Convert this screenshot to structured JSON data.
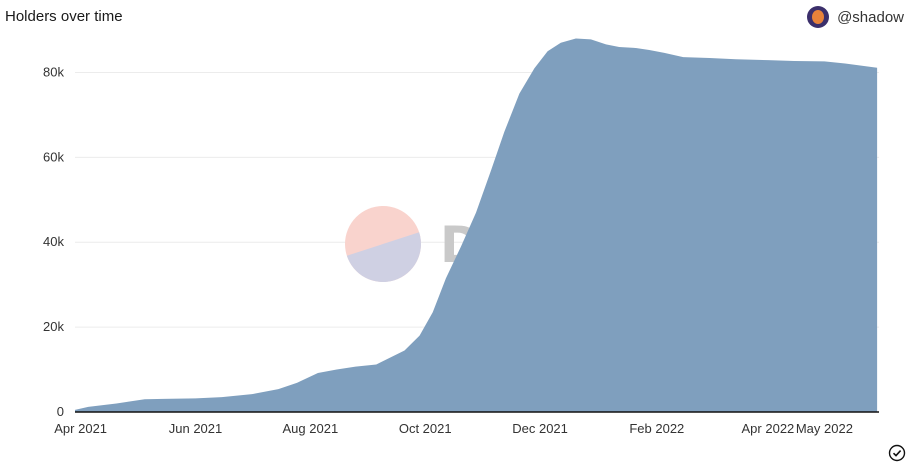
{
  "header": {
    "title": "Holders over time",
    "author": "@shadow"
  },
  "watermark": {
    "text": "Dune"
  },
  "colors": {
    "area": "#7f9fbe",
    "axis": "#111111",
    "grid": "#ececec",
    "wm_top": "#f9d3cd",
    "wm_bottom": "#cfd0e3"
  },
  "icons": {
    "avatar": "avatar-icon",
    "check": "check-circle-icon"
  },
  "chart_data": {
    "type": "area",
    "title": "Holders over time",
    "xlabel": "",
    "ylabel": "",
    "xlim": [
      "2021-03-29",
      "2022-05-30"
    ],
    "ylim": [
      0,
      90000
    ],
    "yticks": [
      0,
      20000,
      40000,
      60000,
      80000
    ],
    "ytick_labels": [
      "0",
      "20k",
      "40k",
      "60k",
      "80k"
    ],
    "xticks": [
      "2021-04-01",
      "2021-06-01",
      "2021-08-01",
      "2021-10-01",
      "2021-12-01",
      "2022-02-01",
      "2022-04-01",
      "2022-05-01"
    ],
    "xtick_labels": [
      "Apr 2021",
      "Jun 2021",
      "Aug 2021",
      "Oct 2021",
      "Dec 2021",
      "Feb 2022",
      "Apr 2022",
      "May 2022"
    ],
    "grid": true,
    "legend": "none",
    "series": [
      {
        "x": [
          "2021-03-29",
          "2021-04-05",
          "2021-04-20",
          "2021-05-05",
          "2021-05-15",
          "2021-06-01",
          "2021-06-15",
          "2021-07-01",
          "2021-07-15",
          "2021-07-25",
          "2021-08-05",
          "2021-08-15",
          "2021-08-25",
          "2021-09-05",
          "2021-09-20",
          "2021-09-28",
          "2021-10-05",
          "2021-10-12",
          "2021-10-20",
          "2021-10-28",
          "2021-11-05",
          "2021-11-12",
          "2021-11-20",
          "2021-11-28",
          "2021-12-05",
          "2021-12-12",
          "2021-12-20",
          "2021-12-28",
          "2022-01-05",
          "2022-01-12",
          "2022-01-20",
          "2022-01-28",
          "2022-02-05",
          "2022-02-15",
          "2022-03-01",
          "2022-03-15",
          "2022-04-01",
          "2022-04-15",
          "2022-05-01",
          "2022-05-12",
          "2022-05-29"
        ],
        "values": [
          500,
          1200,
          2000,
          3000,
          3100,
          3200,
          3500,
          4200,
          5400,
          6900,
          9200,
          10000,
          10700,
          11200,
          14500,
          18000,
          23500,
          31500,
          39000,
          47000,
          57000,
          66000,
          75000,
          81000,
          85000,
          87000,
          88000,
          87800,
          86600,
          86000,
          85800,
          85300,
          84600,
          83600,
          83400,
          83100,
          82900,
          82700,
          82600,
          82100,
          81100
        ]
      }
    ]
  }
}
